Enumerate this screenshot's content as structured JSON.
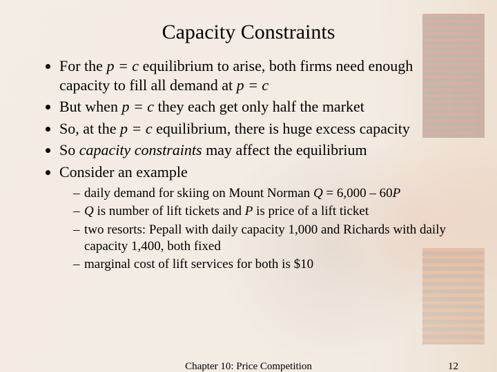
{
  "title": "Capacity Constraints",
  "bullets": {
    "b1a": "For the ",
    "b1b": "p = c",
    "b1c": " equilibrium to arise, both firms need enough capacity to fill all demand at ",
    "b1d": "p = c",
    "b2a": "But when ",
    "b2b": "p = c",
    "b2c": " they each get only half the market",
    "b3a": "So, at the ",
    "b3b": "p = c",
    "b3c": " equilibrium, there is huge excess capacity",
    "b4a": "So ",
    "b4b": "capacity constraints",
    "b4c": " may affect the equilibrium",
    "b5": "Consider an example"
  },
  "sub": {
    "s1a": "daily demand for skiing on Mount Norman ",
    "s1b": "Q",
    "s1c": " = 6,000 – 60",
    "s1d": "P",
    "s2a": "Q",
    "s2b": " is number of lift tickets and ",
    "s2c": "P",
    "s2d": " is price of a lift ticket",
    "s3": "two resorts: Pepall with daily capacity 1,000 and Richards with daily capacity 1,400, both fixed",
    "s4": "marginal cost of lift services for both is $10"
  },
  "footer": {
    "center": "Chapter 10: Price Competition",
    "page": "12"
  },
  "style": {
    "title_fontsize": 30,
    "bullet_fontsize": 22,
    "sub_fontsize": 19,
    "footer_fontsize": 15,
    "text_color": "#000000",
    "background_tint": "#e9e0d4",
    "accent_orange": "#cd501e",
    "accent_brown": "#5a3c28"
  }
}
